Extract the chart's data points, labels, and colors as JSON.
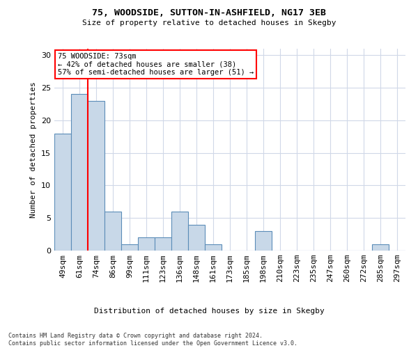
{
  "title1": "75, WOODSIDE, SUTTON-IN-ASHFIELD, NG17 3EB",
  "title2": "Size of property relative to detached houses in Skegby",
  "xlabel": "Distribution of detached houses by size in Skegby",
  "ylabel": "Number of detached properties",
  "categories": [
    "49sqm",
    "61sqm",
    "74sqm",
    "86sqm",
    "99sqm",
    "111sqm",
    "123sqm",
    "136sqm",
    "148sqm",
    "161sqm",
    "173sqm",
    "185sqm",
    "198sqm",
    "210sqm",
    "223sqm",
    "235sqm",
    "247sqm",
    "260sqm",
    "272sqm",
    "285sqm",
    "297sqm"
  ],
  "values": [
    18,
    24,
    23,
    6,
    1,
    2,
    2,
    6,
    4,
    1,
    0,
    0,
    3,
    0,
    0,
    0,
    0,
    0,
    0,
    1,
    0
  ],
  "bar_color": "#c8d8e8",
  "bar_edge_color": "#5b8db8",
  "annotation_line_index": 2,
  "annotation_line_color": "red",
  "annotation_box_text": "75 WOODSIDE: 73sqm\n← 42% of detached houses are smaller (38)\n57% of semi-detached houses are larger (51) →",
  "ylim": [
    0,
    31
  ],
  "yticks": [
    0,
    5,
    10,
    15,
    20,
    25,
    30
  ],
  "footer": "Contains HM Land Registry data © Crown copyright and database right 2024.\nContains public sector information licensed under the Open Government Licence v3.0.",
  "background_color": "#ffffff",
  "grid_color": "#d0d8e8"
}
